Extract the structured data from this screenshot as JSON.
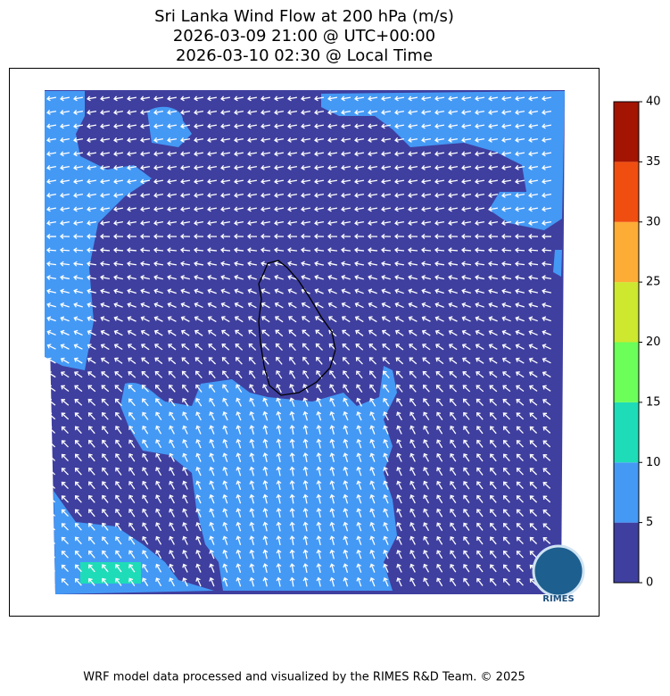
{
  "title": [
    "Sri Lanka Wind Flow at 200 hPa (m/s)",
    "2026-03-09 21:00 @ UTC+00:00",
    "2026-03-10 02:30 @ Local Time"
  ],
  "colorbar": {
    "ticks": [
      0,
      5,
      10,
      15,
      20,
      25,
      30,
      35,
      40
    ],
    "colors": [
      "#3f3f9f",
      "#4499f5",
      "#1fdcb8",
      "#6cff5a",
      "#cde82f",
      "#fdac36",
      "#f04e10",
      "#a31402"
    ]
  },
  "logo": "RIMES",
  "footer": "WRF model data processed and visualized by the RIMES R&D Team. © 2025"
}
